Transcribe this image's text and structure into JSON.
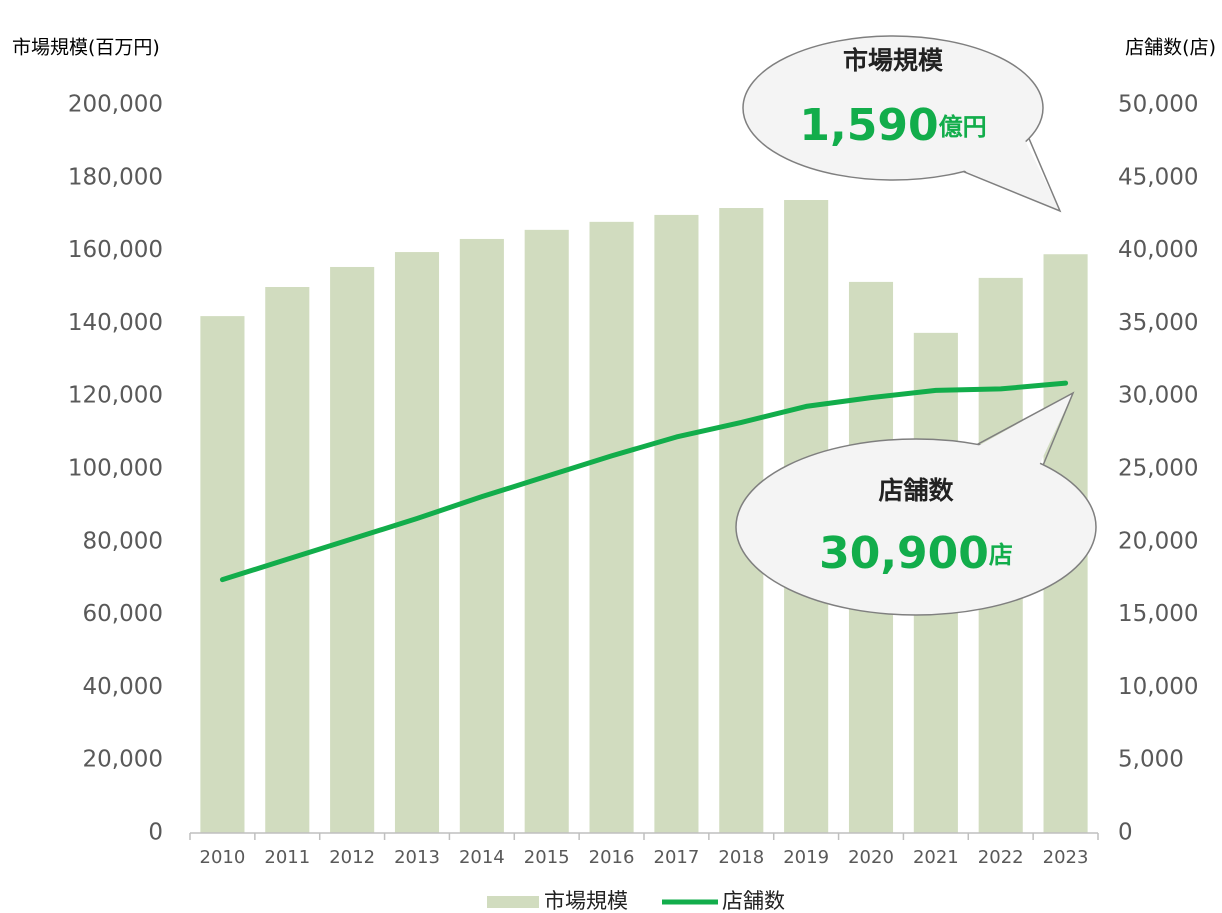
{
  "chart_data": {
    "type": "bar-line",
    "y_label": "市場規模(百万円)",
    "y2_label": "店舗数(店)",
    "categories": [
      "2010",
      "2011",
      "2012",
      "2013",
      "2014",
      "2015",
      "2016",
      "2017",
      "2018",
      "2019",
      "2020",
      "2021",
      "2022",
      "2023"
    ],
    "series": [
      {
        "name": "市場規模",
        "type": "bar",
        "color": "#d1dcbf",
        "axis": "y",
        "values": [
          142000,
          150000,
          155500,
          159600,
          163200,
          165700,
          167900,
          169800,
          171700,
          173900,
          151400,
          137400,
          152500,
          159000
        ]
      },
      {
        "name": "店舗数",
        "type": "line",
        "color": "#12ad4b",
        "axis": "y2",
        "values": [
          17400,
          18800,
          20200,
          21600,
          23100,
          24500,
          25900,
          27200,
          28200,
          29300,
          29900,
          30400,
          30500,
          30900
        ]
      }
    ],
    "ylim": [
      0,
      200000
    ],
    "yticks": [
      0,
      {
        "value": 20000,
        "label": "20,000"
      },
      {
        "value": 40000,
        "label": "40,000"
      },
      {
        "value": 60000,
        "label": "60,000"
      },
      {
        "value": 80000,
        "label": "80,000"
      },
      {
        "value": 100000,
        "label": "100,000"
      },
      {
        "value": 120000,
        "label": "120,000"
      },
      {
        "value": 140000,
        "label": "140,000"
      },
      {
        "value": 160000,
        "label": "160,000"
      },
      {
        "value": 180000,
        "label": "180,000"
      },
      {
        "value": 200000,
        "label": "200,000"
      }
    ],
    "y2lim": [
      0,
      50000
    ],
    "y2ticks": [
      0,
      {
        "value": 5000,
        "label": "5,000"
      },
      {
        "value": 10000,
        "label": "10,000"
      },
      {
        "value": 15000,
        "label": "15,000"
      },
      {
        "value": 20000,
        "label": "20,000"
      },
      {
        "value": 25000,
        "label": "25,000"
      },
      {
        "value": 30000,
        "label": "30,000"
      },
      {
        "value": 35000,
        "label": "35,000"
      },
      {
        "value": 40000,
        "label": "40,000"
      },
      {
        "value": 45000,
        "label": "45,000"
      },
      {
        "value": 50000,
        "label": "50,000"
      }
    ],
    "annotations": [
      {
        "title": "市場規模",
        "value": "1,590",
        "unit": "億円"
      },
      {
        "title": "店舗数",
        "value": "30,900",
        "unit": "店"
      }
    ]
  }
}
